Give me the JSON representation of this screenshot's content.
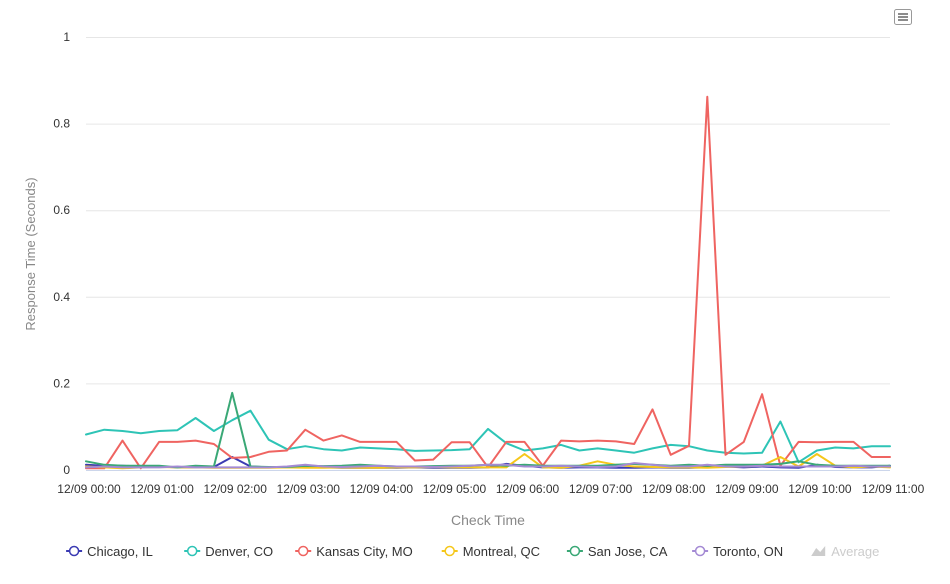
{
  "chart_data": {
    "type": "line",
    "title": "",
    "xlabel": "Check Time",
    "ylabel": "Response Time (Seconds)",
    "ylim": [
      0,
      1
    ],
    "xlim": [
      "12/09 00:00",
      "12/09 11:00"
    ],
    "y_ticks": [
      "0",
      "0.2",
      "0.4",
      "0.6",
      "0.8",
      "1"
    ],
    "x_ticks": [
      "12/09 00:00",
      "12/09 01:00",
      "12/09 02:00",
      "12/09 03:00",
      "12/09 04:00",
      "12/09 05:00",
      "12/09 06:00",
      "12/09 07:00",
      "12/09 08:00",
      "12/09 09:00",
      "12/09 10:00",
      "12/09 11:00"
    ],
    "grid": "horizontal",
    "legend_position": "bottom",
    "x": [
      "00:00",
      "00:15",
      "00:30",
      "00:45",
      "01:00",
      "01:15",
      "01:30",
      "01:45",
      "02:00",
      "02:15",
      "02:30",
      "02:45",
      "03:00",
      "03:15",
      "03:30",
      "03:45",
      "04:00",
      "04:15",
      "04:30",
      "04:45",
      "05:00",
      "05:15",
      "05:30",
      "05:45",
      "06:00",
      "06:15",
      "06:30",
      "06:45",
      "07:00",
      "07:15",
      "07:30",
      "07:45",
      "08:00",
      "08:15",
      "08:30",
      "08:45",
      "09:00",
      "09:15",
      "09:30",
      "09:45",
      "10:00",
      "10:15",
      "10:30",
      "10:45",
      "11:00"
    ],
    "series": [
      {
        "name": "Chicago, IL",
        "color": "#3b3bb3",
        "values": [
          0.012,
          0.01,
          0.01,
          0.008,
          0.008,
          0.006,
          0.006,
          0.007,
          0.03,
          0.008,
          0.006,
          0.006,
          0.006,
          0.006,
          0.005,
          0.005,
          0.005,
          0.005,
          0.006,
          0.005,
          0.005,
          0.005,
          0.006,
          0.014,
          0.01,
          0.006,
          0.005,
          0.006,
          0.006,
          0.005,
          0.005,
          0.006,
          0.005,
          0.005,
          0.006,
          0.008,
          0.006,
          0.008,
          0.006,
          0.005,
          0.012,
          0.007,
          0.006,
          0.006,
          0.01
        ]
      },
      {
        "name": "Denver, CO",
        "color": "#2ec4b6",
        "values": [
          0.082,
          0.093,
          0.09,
          0.085,
          0.09,
          0.092,
          0.12,
          0.09,
          0.115,
          0.137,
          0.07,
          0.048,
          0.055,
          0.048,
          0.045,
          0.052,
          0.05,
          0.048,
          0.044,
          0.045,
          0.046,
          0.048,
          0.095,
          0.062,
          0.045,
          0.05,
          0.058,
          0.045,
          0.05,
          0.045,
          0.04,
          0.05,
          0.058,
          0.055,
          0.045,
          0.04,
          0.038,
          0.04,
          0.112,
          0.018,
          0.045,
          0.052,
          0.05,
          0.055,
          0.055
        ]
      },
      {
        "name": "Kansas City, MO",
        "color": "#ef6461",
        "values": [
          0.004,
          0.004,
          0.068,
          0.004,
          0.065,
          0.065,
          0.068,
          0.06,
          0.028,
          0.03,
          0.042,
          0.045,
          0.093,
          0.068,
          0.08,
          0.065,
          0.065,
          0.065,
          0.022,
          0.024,
          0.064,
          0.064,
          0.006,
          0.065,
          0.065,
          0.01,
          0.068,
          0.066,
          0.068,
          0.066,
          0.06,
          0.14,
          0.035,
          0.056,
          0.862,
          0.035,
          0.065,
          0.175,
          0.01,
          0.065,
          0.064,
          0.065,
          0.065,
          0.03,
          0.03
        ]
      },
      {
        "name": "Montreal, QC",
        "color": "#f5c71a",
        "values": [
          0.008,
          0.006,
          0.004,
          0.006,
          0.007,
          0.006,
          0.006,
          0.005,
          0.005,
          0.005,
          0.005,
          0.006,
          0.005,
          0.005,
          0.006,
          0.005,
          0.005,
          0.006,
          0.006,
          0.007,
          0.006,
          0.006,
          0.006,
          0.006,
          0.037,
          0.006,
          0.005,
          0.01,
          0.02,
          0.012,
          0.008,
          0.007,
          0.006,
          0.006,
          0.005,
          0.007,
          0.008,
          0.01,
          0.03,
          0.008,
          0.037,
          0.01,
          0.006,
          0.008,
          0.006
        ]
      },
      {
        "name": "San Jose, CA",
        "color": "#3aa876",
        "values": [
          0.02,
          0.012,
          0.01,
          0.01,
          0.01,
          0.006,
          0.01,
          0.008,
          0.178,
          0.008,
          0.007,
          0.007,
          0.01,
          0.009,
          0.01,
          0.012,
          0.01,
          0.008,
          0.008,
          0.009,
          0.01,
          0.01,
          0.012,
          0.01,
          0.012,
          0.01,
          0.01,
          0.01,
          0.01,
          0.012,
          0.014,
          0.012,
          0.01,
          0.012,
          0.01,
          0.012,
          0.012,
          0.012,
          0.014,
          0.02,
          0.012,
          0.01,
          0.01,
          0.01,
          0.01
        ]
      },
      {
        "name": "Toronto, ON",
        "color": "#a48ad4",
        "values": [
          0.006,
          0.008,
          0.006,
          0.006,
          0.006,
          0.008,
          0.006,
          0.006,
          0.006,
          0.006,
          0.006,
          0.008,
          0.012,
          0.008,
          0.007,
          0.008,
          0.01,
          0.008,
          0.008,
          0.007,
          0.008,
          0.01,
          0.012,
          0.012,
          0.008,
          0.008,
          0.01,
          0.008,
          0.007,
          0.008,
          0.016,
          0.012,
          0.008,
          0.008,
          0.012,
          0.008,
          0.008,
          0.01,
          0.008,
          0.008,
          0.008,
          0.008,
          0.01,
          0.008,
          0.008
        ]
      }
    ],
    "average_legend": {
      "name": "Average",
      "color": "#cccccc",
      "hidden": true
    }
  }
}
